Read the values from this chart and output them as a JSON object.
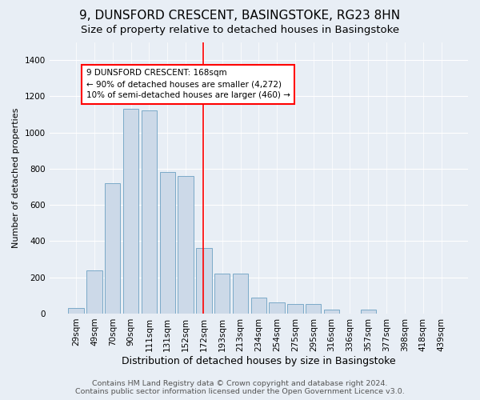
{
  "title": "9, DUNSFORD CRESCENT, BASINGSTOKE, RG23 8HN",
  "subtitle": "Size of property relative to detached houses in Basingstoke",
  "xlabel": "Distribution of detached houses by size in Basingstoke",
  "ylabel": "Number of detached properties",
  "footer_line1": "Contains HM Land Registry data © Crown copyright and database right 2024.",
  "footer_line2": "Contains public sector information licensed under the Open Government Licence v3.0.",
  "bar_labels": [
    "29sqm",
    "49sqm",
    "70sqm",
    "90sqm",
    "111sqm",
    "131sqm",
    "152sqm",
    "172sqm",
    "193sqm",
    "213sqm",
    "234sqm",
    "254sqm",
    "275sqm",
    "295sqm",
    "316sqm",
    "336sqm",
    "357sqm",
    "377sqm",
    "398sqm",
    "418sqm",
    "439sqm"
  ],
  "bar_values": [
    30,
    240,
    720,
    1130,
    1120,
    780,
    760,
    360,
    220,
    220,
    90,
    60,
    55,
    55,
    20,
    0,
    20,
    0,
    0,
    0,
    0
  ],
  "bar_color": "#ccd9e8",
  "bar_edge_color": "#7baac8",
  "vline_x": 7.45,
  "vline_color": "red",
  "vline_linewidth": 1.2,
  "annotation_text": "9 DUNSFORD CRESCENT: 168sqm\n← 90% of detached houses are smaller (4,272)\n10% of semi-detached houses are larger (460) →",
  "annotation_box_color": "white",
  "annotation_box_edgecolor": "red",
  "ylim": [
    0,
    1500
  ],
  "yticks": [
    0,
    200,
    400,
    600,
    800,
    1000,
    1200,
    1400
  ],
  "background_color": "#e8eef5",
  "plot_bg_color": "#e8eef5",
  "grid_color": "white",
  "title_fontsize": 11,
  "subtitle_fontsize": 9.5,
  "xlabel_fontsize": 9,
  "ylabel_fontsize": 8,
  "tick_fontsize": 7.5,
  "footer_fontsize": 6.8,
  "annot_fontsize": 7.5
}
